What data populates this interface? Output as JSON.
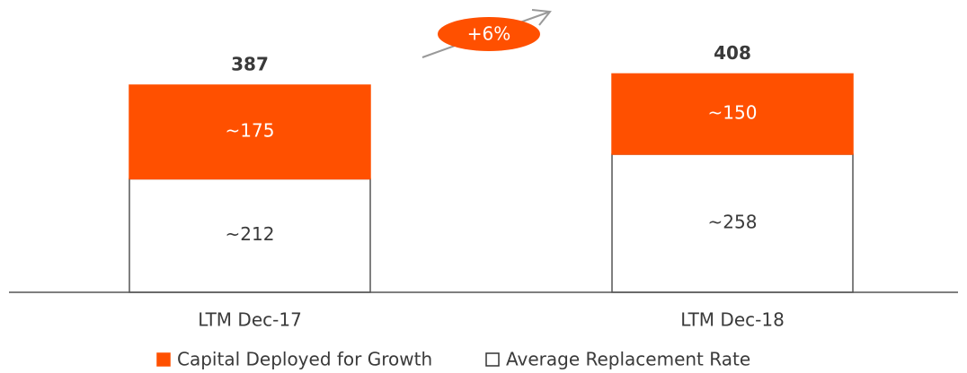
{
  "chart_data": {
    "type": "stacked_bar",
    "categories": [
      "LTM Dec-17",
      "LTM Dec-18"
    ],
    "series": [
      {
        "name": "Capital Deployed for Growth",
        "color": "#ff5000",
        "values": [
          175,
          150
        ],
        "value_labels": [
          "~175",
          "~150"
        ]
      },
      {
        "name": "Average Replacement Rate",
        "color": "#ffffff",
        "values": [
          212,
          258
        ],
        "value_labels": [
          "~212",
          "~258"
        ]
      }
    ],
    "totals": [
      387,
      408
    ],
    "annotation": "+6%"
  }
}
